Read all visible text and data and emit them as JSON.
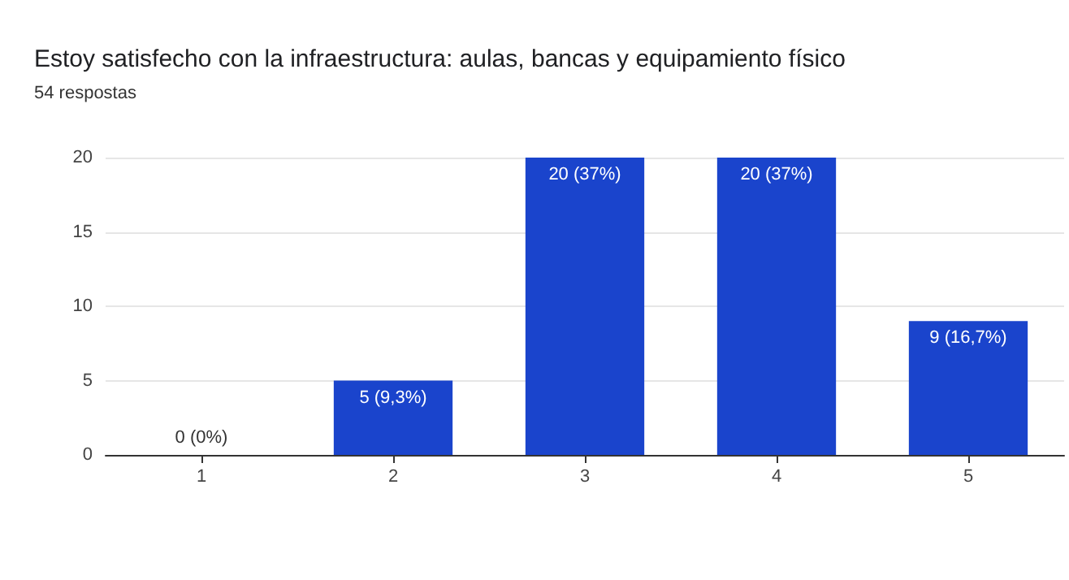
{
  "chart_data": {
    "type": "bar",
    "title": "Estoy satisfecho con la infraestructura: aulas, bancas y equipamiento físico",
    "subtitle": "54 respostas",
    "categories": [
      "1",
      "2",
      "3",
      "4",
      "5"
    ],
    "values": [
      0,
      5,
      20,
      20,
      9
    ],
    "value_labels": [
      "0 (0%)",
      "5 (9,3%)",
      "20 (37%)",
      "20 (37%)",
      "9 (16,7%)"
    ],
    "color": "#1a44cc",
    "ylim": [
      0,
      20
    ],
    "yticks": [
      0,
      5,
      10,
      15,
      20
    ],
    "grid": "y"
  }
}
